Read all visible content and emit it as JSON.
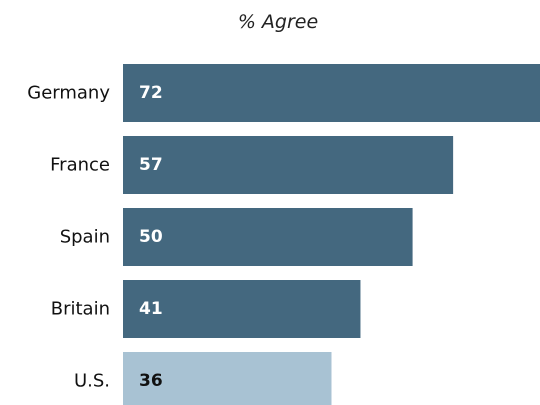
{
  "chart_data": {
    "type": "bar",
    "orientation": "horizontal",
    "title": "% Agree",
    "categories": [
      "Germany",
      "France",
      "Spain",
      "Britain",
      "U.S."
    ],
    "values": [
      72,
      57,
      50,
      41,
      36
    ],
    "value_labels": [
      "72",
      "57",
      "50",
      "41",
      "36"
    ],
    "xlim": [
      0,
      72
    ],
    "grid": false,
    "legend": "none",
    "colors": {
      "default_bar": "#44687f",
      "highlight_bar": "#a8c2d3",
      "default_label": "#ffffff",
      "highlight_label": "#111111"
    },
    "highlight_index": 4
  }
}
